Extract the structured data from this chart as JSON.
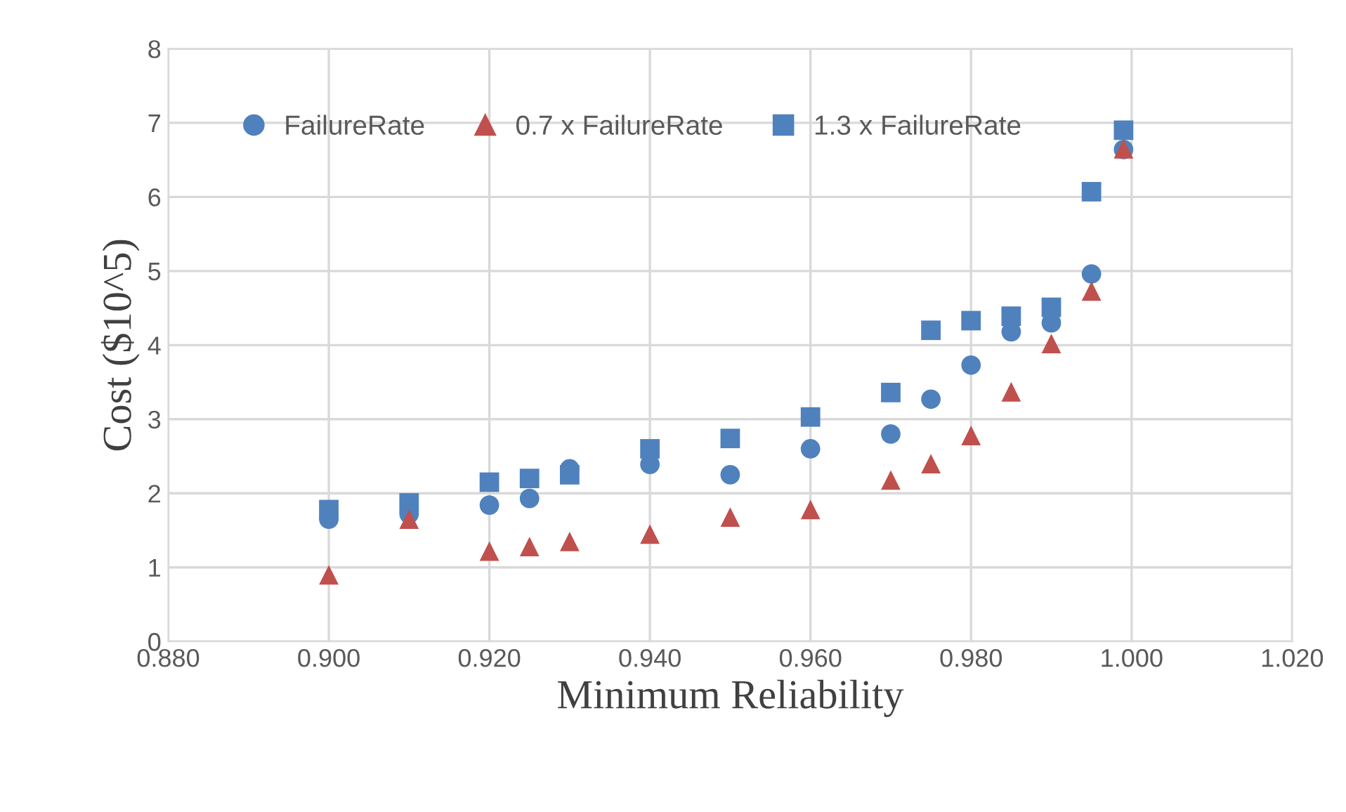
{
  "chart_data": {
    "type": "scatter",
    "xlabel": "Minimum Reliability",
    "ylabel": "Cost ($10^5)",
    "x": [
      0.9,
      0.91,
      0.92,
      0.925,
      0.93,
      0.94,
      0.95,
      0.96,
      0.97,
      0.975,
      0.98,
      0.985,
      0.99,
      0.995,
      0.999
    ],
    "series": [
      {
        "name": "FailureRate",
        "color": "#4f81bd",
        "marker": "circle",
        "values": [
          1.65,
          1.72,
          1.84,
          1.93,
          2.33,
          2.39,
          2.25,
          2.6,
          2.8,
          3.27,
          3.73,
          4.18,
          4.3,
          4.96,
          6.64
        ]
      },
      {
        "name": "0.7 x FailureRate",
        "color": "#c0504d",
        "marker": "triangle",
        "values": [
          0.9,
          1.65,
          1.22,
          1.28,
          1.35,
          1.45,
          1.68,
          1.78,
          2.18,
          2.4,
          2.78,
          3.37,
          4.02,
          4.73,
          6.65
        ]
      },
      {
        "name": "1.3 x FailureRate",
        "color": "#4f81bd",
        "marker": "square",
        "values": [
          1.78,
          1.87,
          2.15,
          2.2,
          2.25,
          2.6,
          2.74,
          3.03,
          3.36,
          4.2,
          4.33,
          4.39,
          4.51,
          6.07,
          6.9
        ]
      }
    ],
    "xlim": [
      0.88,
      1.02
    ],
    "xticks": [
      {
        "value": 0.88,
        "label": "0.880"
      },
      {
        "value": 0.9,
        "label": "0.900"
      },
      {
        "value": 0.92,
        "label": "0.920"
      },
      {
        "value": 0.94,
        "label": "0.940"
      },
      {
        "value": 0.96,
        "label": "0.960"
      },
      {
        "value": 0.98,
        "label": "0.980"
      },
      {
        "value": 1.0,
        "label": "1.000"
      },
      {
        "value": 1.02,
        "label": "1.020"
      }
    ],
    "ylim": [
      0,
      8
    ],
    "yticks": [
      0,
      1,
      2,
      3,
      4,
      5,
      6,
      7,
      8
    ],
    "grid": true,
    "legend": "top left"
  }
}
